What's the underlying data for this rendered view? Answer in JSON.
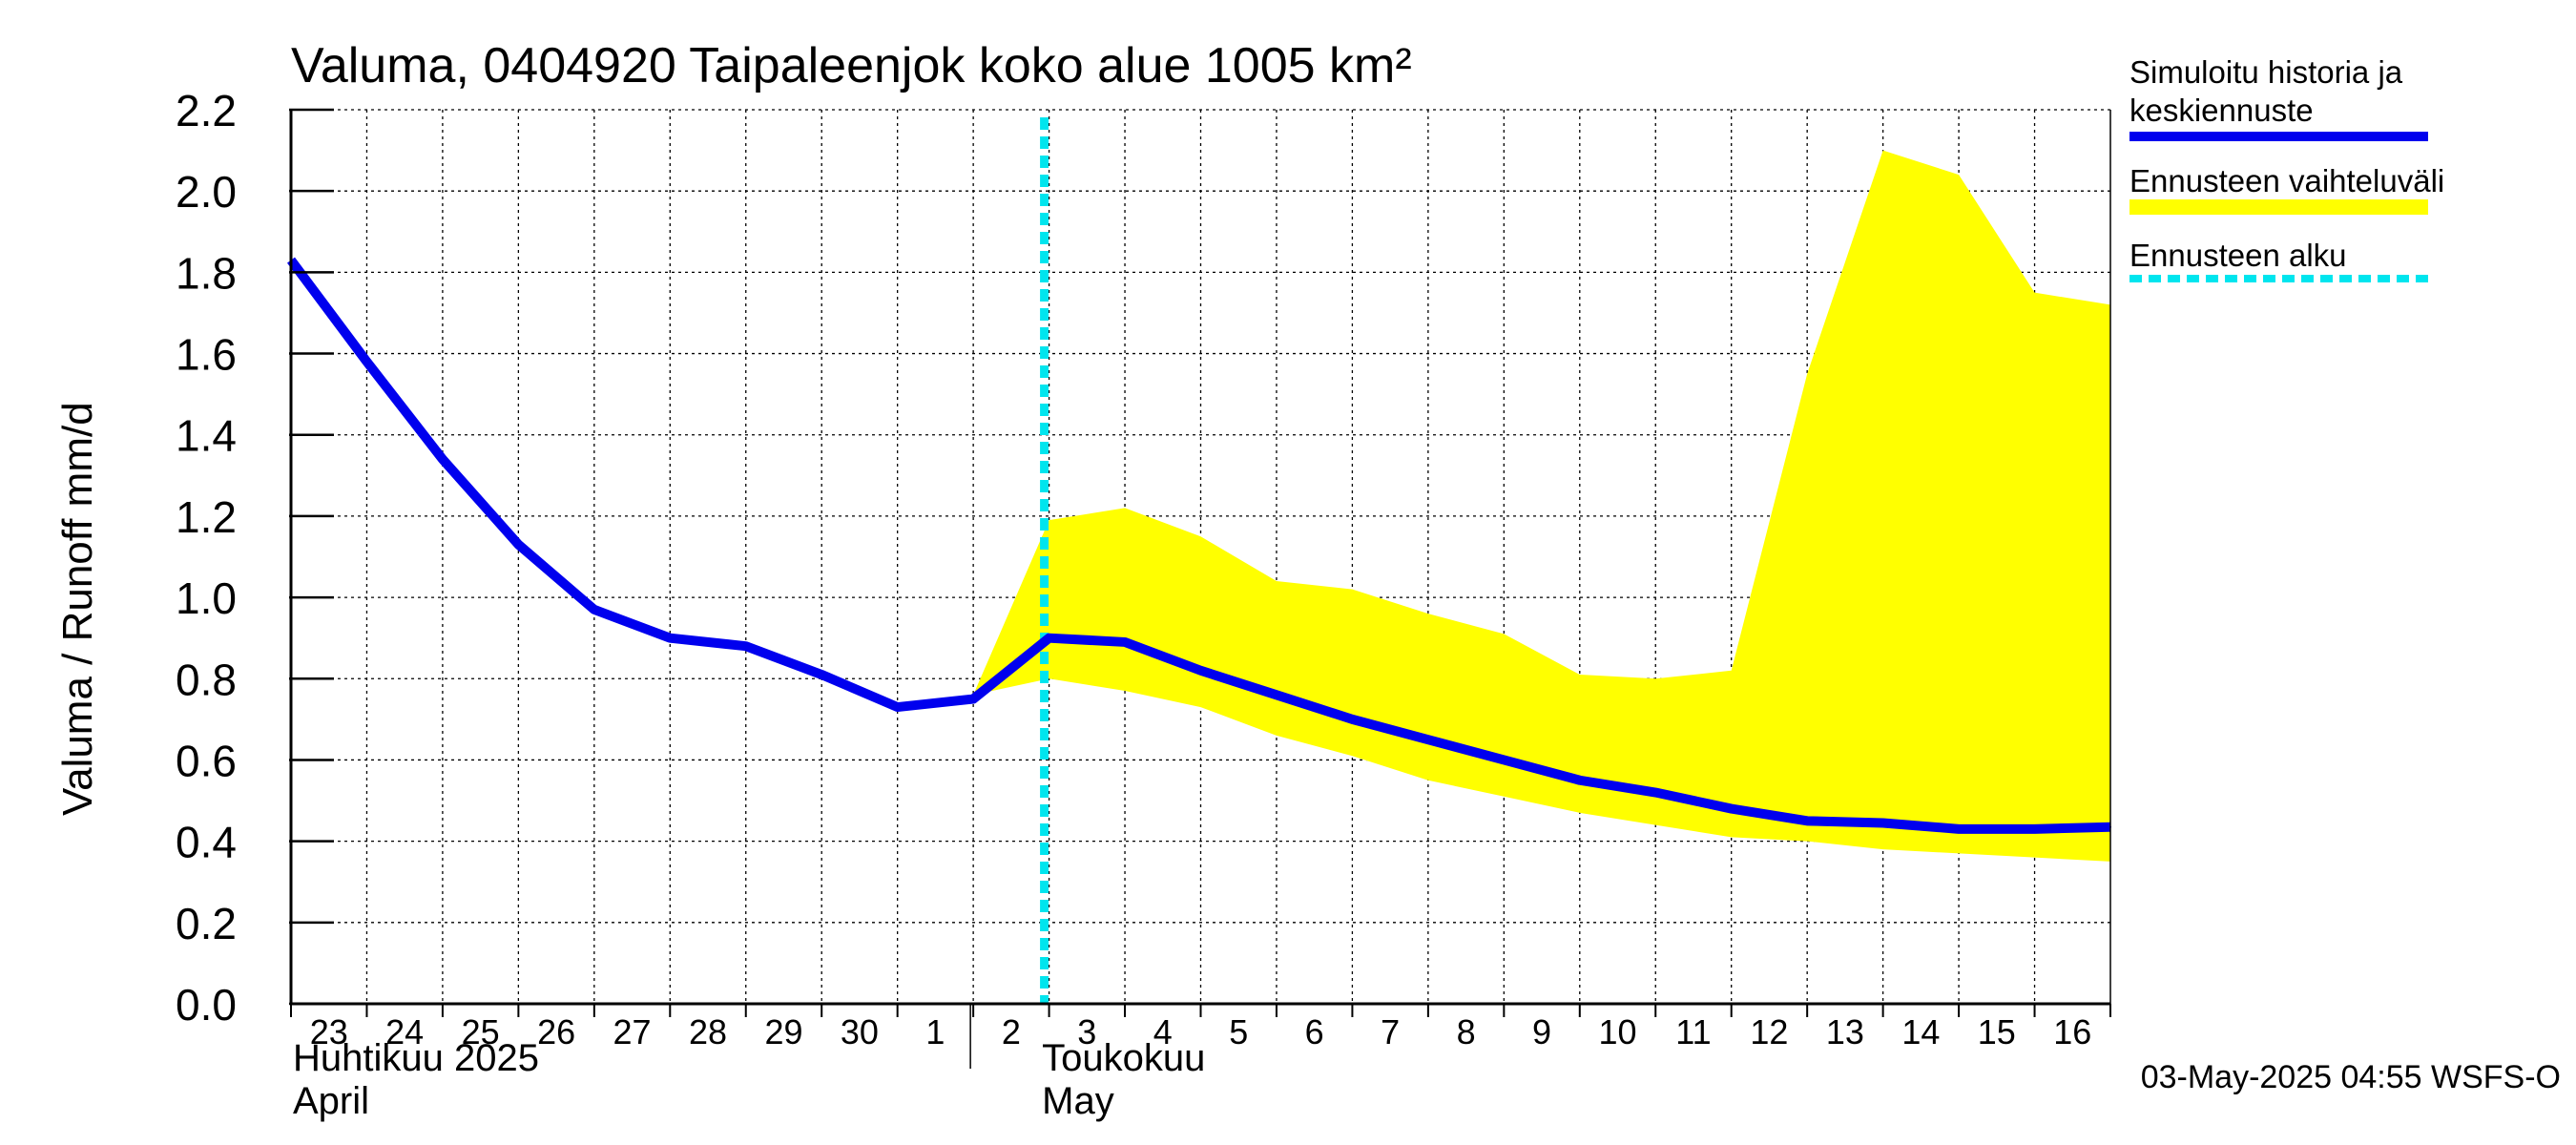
{
  "chart_data": {
    "type": "line",
    "title": "Valuma, 0404920 Taipaleenjok koko alue 1005 km²",
    "ylabel": "Valuma / Runoff     mm/d",
    "ylim": [
      0.0,
      2.2
    ],
    "yticks": [
      "0.0",
      "0.2",
      "0.4",
      "0.6",
      "0.8",
      "1.0",
      "1.2",
      "1.4",
      "1.6",
      "1.8",
      "2.0",
      "2.2"
    ],
    "x_range": [
      "2025-04-23",
      "2025-05-17"
    ],
    "x_day_labels": [
      "23",
      "24",
      "25",
      "26",
      "27",
      "28",
      "29",
      "30",
      "1",
      "2",
      "3",
      "4",
      "5",
      "6",
      "7",
      "8",
      "9",
      "10",
      "11",
      "12",
      "13",
      "14",
      "15",
      "16"
    ],
    "month_labels": [
      {
        "line1": "Huhtikuu  2025",
        "line2": "April",
        "start": "2025-04-23"
      },
      {
        "line1": "Toukokuu",
        "line2": "May",
        "start": "2025-05-02"
      }
    ],
    "forecast_start": "2025-05-03",
    "grid": true,
    "legend_position": "right",
    "legend": [
      {
        "label_line1": "Simuloitu historia ja",
        "label_line2": "keskiennuste",
        "color": "#0000ee",
        "style": "solid"
      },
      {
        "label_line1": "Ennusteen vaihteluväli",
        "label_line2": "",
        "color": "#ffff00",
        "style": "band"
      },
      {
        "label_line1": "Ennusteen alku",
        "label_line2": "",
        "color": "#00e5ee",
        "style": "dashed"
      }
    ],
    "series": [
      {
        "name": "Simuloitu historia ja keskiennuste",
        "color": "#0000ee",
        "x": [
          "2025-04-23",
          "2025-04-24",
          "2025-04-25",
          "2025-04-26",
          "2025-04-27",
          "2025-04-28",
          "2025-04-29",
          "2025-04-30",
          "2025-05-01",
          "2025-05-02",
          "2025-05-03",
          "2025-05-04",
          "2025-05-05",
          "2025-05-06",
          "2025-05-07",
          "2025-05-08",
          "2025-05-09",
          "2025-05-10",
          "2025-05-11",
          "2025-05-12",
          "2025-05-13",
          "2025-05-14",
          "2025-05-15",
          "2025-05-16",
          "2025-05-17"
        ],
        "values": [
          1.83,
          1.58,
          1.34,
          1.13,
          0.97,
          0.9,
          0.88,
          0.81,
          0.73,
          0.75,
          0.9,
          0.89,
          0.82,
          0.76,
          0.7,
          0.65,
          0.6,
          0.55,
          0.52,
          0.48,
          0.45,
          0.445,
          0.43,
          0.43,
          0.435
        ]
      },
      {
        "name": "Ennusteen vaihteluväli",
        "color": "#ffff00",
        "x": [
          "2025-05-02",
          "2025-05-03",
          "2025-05-04",
          "2025-05-05",
          "2025-05-06",
          "2025-05-07",
          "2025-05-08",
          "2025-05-09",
          "2025-05-10",
          "2025-05-11",
          "2025-05-12",
          "2025-05-13",
          "2025-05-14",
          "2025-05-15",
          "2025-05-16",
          "2025-05-17"
        ],
        "upper": [
          0.76,
          1.19,
          1.22,
          1.15,
          1.04,
          1.02,
          0.96,
          0.91,
          0.81,
          0.8,
          0.82,
          1.55,
          2.1,
          2.04,
          1.75,
          1.72
        ],
        "lower": [
          0.76,
          0.8,
          0.77,
          0.73,
          0.66,
          0.61,
          0.55,
          0.51,
          0.47,
          0.44,
          0.41,
          0.4,
          0.38,
          0.37,
          0.36,
          0.35
        ]
      }
    ]
  },
  "footer": {
    "timestamp": "03-May-2025 04:55 WSFS-O"
  }
}
